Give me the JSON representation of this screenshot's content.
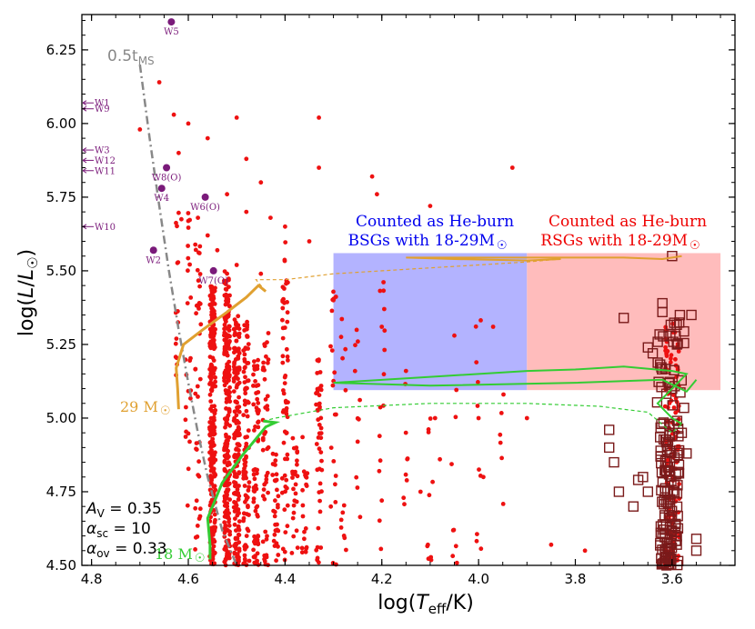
{
  "chart_data": {
    "type": "scatter",
    "title": "",
    "xlabel": "log(T_eff/K)",
    "ylabel": "log(L/L_☉)",
    "xlim": [
      4.82,
      3.47
    ],
    "ylim": [
      4.5,
      6.37
    ],
    "x_ticks": [
      {
        "value": 4.8,
        "label": "4.8"
      },
      {
        "value": 4.6,
        "label": "4.6"
      },
      {
        "value": 4.4,
        "label": "4.4"
      },
      {
        "value": 4.2,
        "label": "4.2"
      },
      {
        "value": 4.0,
        "label": "4.0"
      },
      {
        "value": 3.8,
        "label": "3.8"
      },
      {
        "value": 3.6,
        "label": "3.6"
      }
    ],
    "y_ticks": [
      {
        "value": 4.5,
        "label": "4.50"
      },
      {
        "value": 4.75,
        "label": "4.75"
      },
      {
        "value": 5.0,
        "label": "5.00"
      },
      {
        "value": 5.25,
        "label": "5.25"
      },
      {
        "value": 5.5,
        "label": "5.50"
      },
      {
        "value": 5.75,
        "label": "5.75"
      },
      {
        "value": 6.0,
        "label": "6.00"
      },
      {
        "value": 6.25,
        "label": "6.25"
      }
    ],
    "regions": [
      {
        "name": "bsg-region",
        "x": [
          4.3,
          3.9
        ],
        "y": [
          5.095,
          5.56
        ],
        "color": "#b3b3ff",
        "label_lines": [
          "Counted as He-burn",
          "BSGs with 18-29M☉"
        ],
        "label_color": "#0000ee"
      },
      {
        "name": "rsg-region",
        "x": [
          3.9,
          3.5
        ],
        "y": [
          5.095,
          5.56
        ],
        "color": "#ffbcbc",
        "label_lines": [
          "Counted as He-burn",
          "RSGs with 18-29M☉"
        ],
        "label_color": "#ee0000"
      }
    ],
    "wr_stars": {
      "color": "#7a1a7a",
      "points": [
        {
          "label": "W5",
          "x": 4.635,
          "y": 6.345
        },
        {
          "label": "W8(O)",
          "x": 4.645,
          "y": 5.85
        },
        {
          "label": "W4",
          "x": 4.655,
          "y": 5.78
        },
        {
          "label": "W6(O)",
          "x": 4.565,
          "y": 5.75
        },
        {
          "label": "W2",
          "x": 4.672,
          "y": 5.57
        },
        {
          "label": "W7(O)",
          "x": 4.548,
          "y": 5.5
        }
      ],
      "arrows": [
        {
          "label": "W1",
          "y": 6.07
        },
        {
          "label": "W9",
          "y": 6.05
        },
        {
          "label": "W3",
          "y": 5.91
        },
        {
          "label": "W12",
          "y": 5.875
        },
        {
          "label": "W11",
          "y": 5.84
        },
        {
          "label": "W10",
          "y": 5.65
        }
      ]
    },
    "tms_line": {
      "label": "0.5t",
      "label_sub": "MS",
      "color": "#888888",
      "x": [
        4.7,
        4.68,
        4.66,
        4.64,
        4.62,
        4.6,
        4.58,
        4.56,
        4.53,
        4.5
      ],
      "y": [
        6.2,
        5.95,
        5.72,
        5.5,
        5.3,
        5.12,
        4.95,
        4.8,
        4.62,
        4.5
      ]
    },
    "tracks": [
      {
        "name": "29 M☉",
        "color": "#e0a030",
        "solid": [
          [
            4.62,
            5.03
          ],
          [
            4.622,
            5.1
          ],
          [
            4.625,
            5.17
          ],
          [
            4.61,
            5.25
          ],
          [
            4.57,
            5.3
          ],
          [
            4.52,
            5.36
          ],
          [
            4.48,
            5.41
          ],
          [
            4.455,
            5.45
          ],
          [
            4.44,
            5.43
          ]
        ],
        "dashed": [
          [
            4.44,
            5.43
          ],
          [
            4.46,
            5.47
          ],
          [
            4.4,
            5.47
          ],
          [
            4.3,
            5.49
          ],
          [
            4.15,
            5.505
          ],
          [
            4.0,
            5.52
          ],
          [
            3.9,
            5.53
          ],
          [
            3.83,
            5.54
          ]
        ],
        "solid2": [
          [
            3.83,
            5.54
          ],
          [
            3.9,
            5.535
          ],
          [
            4.05,
            5.54
          ],
          [
            4.15,
            5.545
          ],
          [
            4.0,
            5.545
          ],
          [
            3.8,
            5.545
          ],
          [
            3.7,
            5.545
          ],
          [
            3.62,
            5.54
          ],
          [
            3.58,
            5.55
          ]
        ]
      },
      {
        "name": "18 M☉",
        "color": "#33cc33",
        "solid": [
          [
            4.555,
            4.52
          ],
          [
            4.555,
            4.57
          ],
          [
            4.56,
            4.66
          ],
          [
            4.53,
            4.78
          ],
          [
            4.49,
            4.87
          ],
          [
            4.46,
            4.93
          ],
          [
            4.44,
            4.97
          ],
          [
            4.42,
            4.985
          ],
          [
            4.445,
            4.99
          ]
        ],
        "dashed": [
          [
            4.445,
            4.99
          ],
          [
            4.42,
            5.0
          ],
          [
            4.3,
            5.035
          ],
          [
            4.1,
            5.05
          ],
          [
            3.9,
            5.05
          ],
          [
            3.75,
            5.04
          ],
          [
            3.65,
            5.02
          ],
          [
            3.6,
            4.95
          ],
          [
            3.58,
            4.98
          ]
        ],
        "solid2": [
          [
            3.58,
            4.98
          ],
          [
            3.6,
            5.0
          ],
          [
            3.63,
            5.05
          ],
          [
            3.57,
            5.15
          ],
          [
            3.6,
            5.16
          ],
          [
            3.7,
            5.175
          ],
          [
            3.8,
            5.165
          ],
          [
            3.9,
            5.16
          ],
          [
            4.1,
            5.14
          ],
          [
            4.3,
            5.12
          ],
          [
            4.1,
            5.11
          ],
          [
            3.8,
            5.12
          ],
          [
            3.62,
            5.13
          ],
          [
            3.57,
            5.09
          ],
          [
            3.55,
            5.13
          ]
        ]
      }
    ],
    "rsg_squares_color": "#7a1a1a",
    "star_color": "#ee1111",
    "annotation_lines": [
      "A_V = 0.35",
      "α_sc = 10",
      "α_ov = 0.33"
    ]
  },
  "labels": {
    "track29": "29 M",
    "track18": "18 M",
    "sun": "☉",
    "tms_main": "0.5t",
    "tms_sub": "MS",
    "bsg_line1": "Counted as He-burn",
    "bsg_line2": "BSGs with 18-29M",
    "rsg_line1": "Counted as He-burn",
    "rsg_line2": "RSGs with 18-29M",
    "av": "A",
    "av_sub": "V",
    "av_val": " = 0.35",
    "asc": "α",
    "asc_sub": "sc",
    "asc_val": " = 10",
    "aov": "α",
    "aov_sub": "ov",
    "aov_val": " = 0.33",
    "xlabel_pre": "log(",
    "xlabel_T": "T",
    "xlabel_sub": "eff",
    "xlabel_post": "/K)",
    "ylabel_pre": "log(",
    "ylabel_L": "L",
    "ylabel_slash": "/",
    "ylabel_L2": "L",
    "ylabel_sun": "☉",
    "ylabel_post": ")"
  }
}
